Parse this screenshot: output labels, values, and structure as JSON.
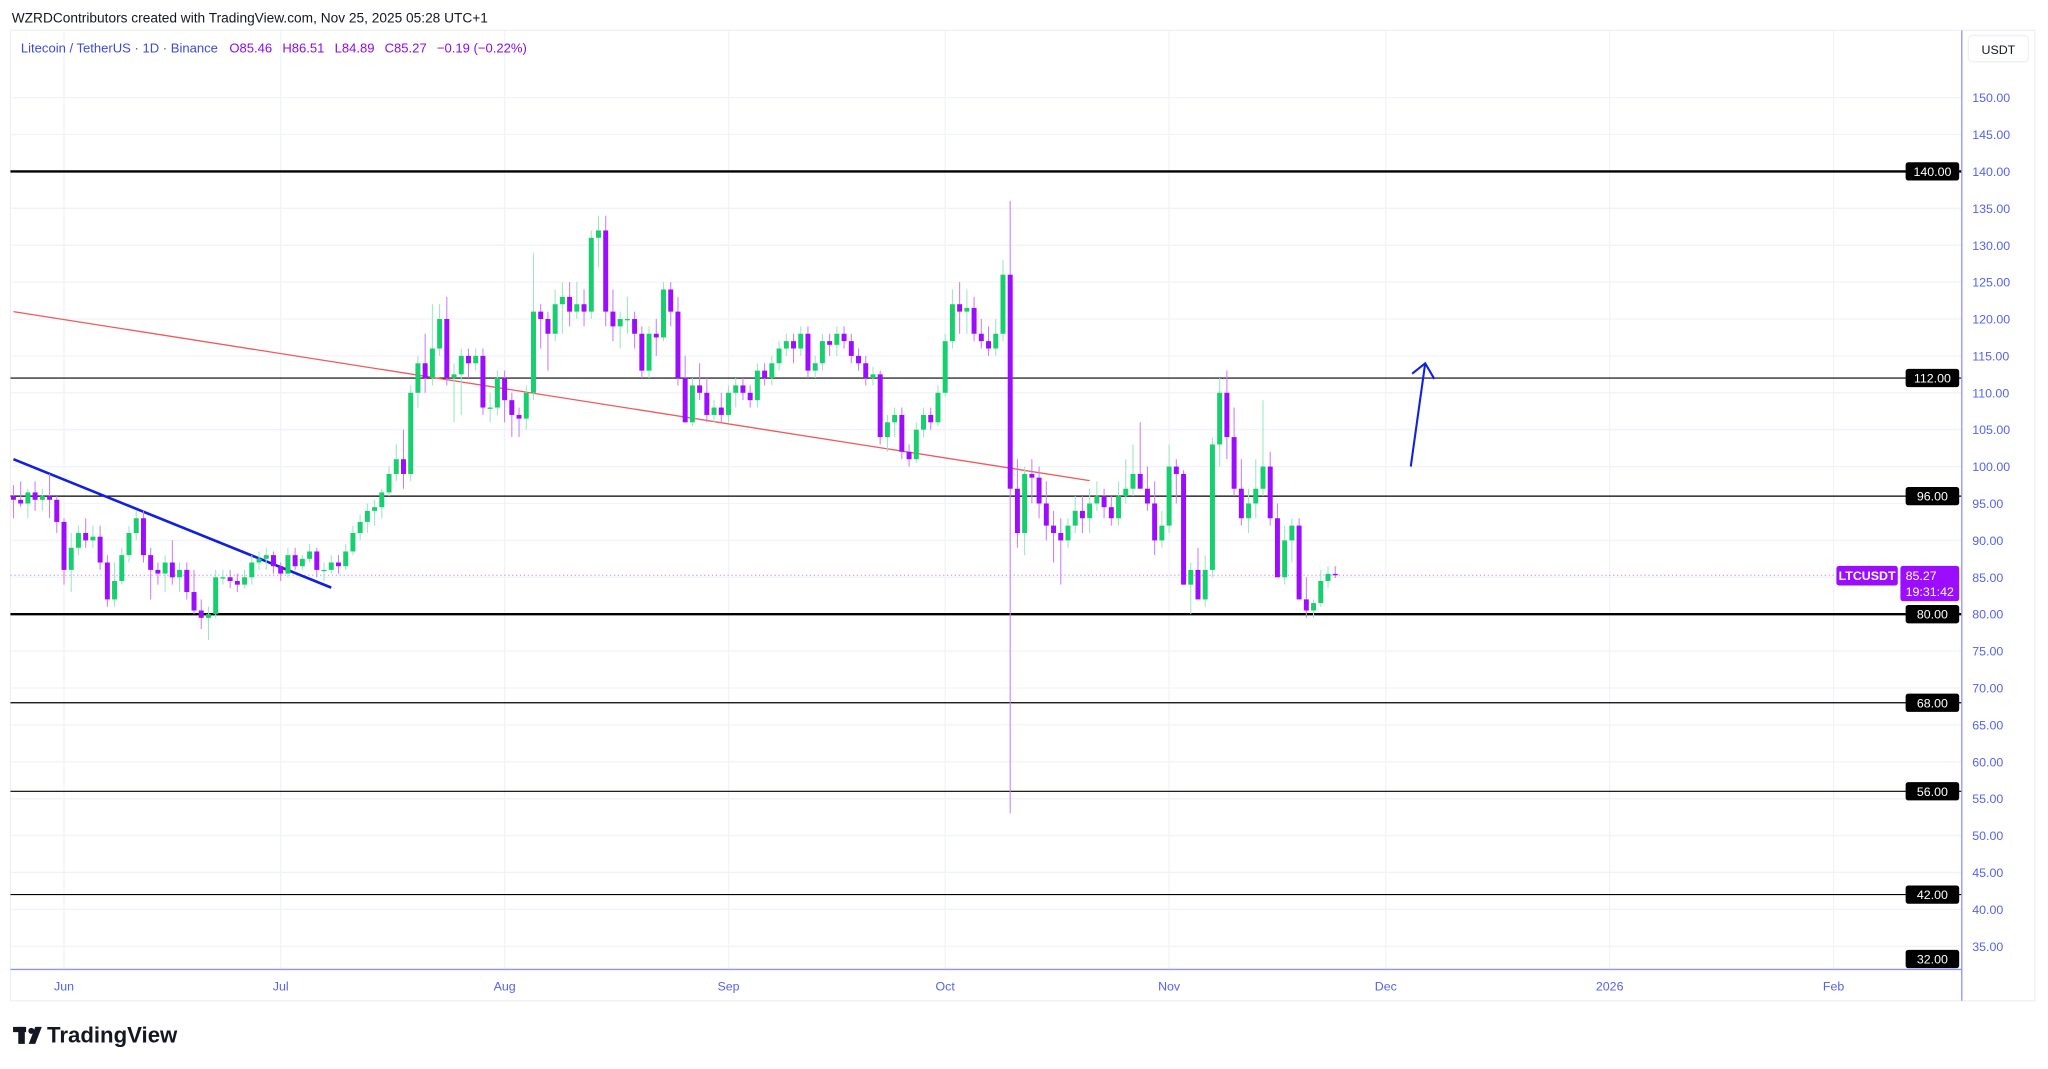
{
  "header": {
    "attribution": "WZRDContributors created with TradingView.com, Nov 25, 2025 05:28 UTC+1"
  },
  "legend": {
    "symbol": "Litecoin / TetherUS · 1D · Binance",
    "open": "O85.46",
    "high": "H86.51",
    "low": "L84.89",
    "close": "C85.27",
    "change": "−0.19 (−0.22%)"
  },
  "price_axis": {
    "currency_button": "USDT"
  },
  "last_price": {
    "symbol_label": "LTCUSDT",
    "price": "85.27",
    "countdown": "19:31:42"
  },
  "logo": {
    "text": "TradingView"
  },
  "colors": {
    "up": "#17cf6e",
    "down": "#9c0cff",
    "axis_text": "#5561f0",
    "level_line": "#000000",
    "trendline_blue": "#1020e0",
    "trendline_red": "#f05a5a",
    "arrow": "#1020e0"
  },
  "chart_data": {
    "type": "candlestick",
    "title": "Litecoin / TetherUS · 1D · Binance",
    "first_date": "2025-05-25",
    "last_date": "2025-11-25",
    "interval": "1D",
    "ylim": [
      31,
      158
    ],
    "y_scale": "linear",
    "grid": true,
    "x_tick_labels": [
      "Jun",
      "Jul",
      "Aug",
      "Sep",
      "Oct",
      "Nov",
      "Dec",
      "2026",
      "Feb"
    ],
    "x_tick_dates": [
      "2025-06-01",
      "2025-07-01",
      "2025-08-01",
      "2025-09-01",
      "2025-10-01",
      "2025-11-01",
      "2025-12-01",
      "2026-01-01",
      "2026-02-01"
    ],
    "y_tick_labels": [
      "35.00",
      "40.00",
      "45.00",
      "50.00",
      "55.00",
      "60.00",
      "65.00",
      "70.00",
      "75.00",
      "80.00",
      "85.00",
      "90.00",
      "95.00",
      "100.00",
      "105.00",
      "110.00",
      "115.00",
      "120.00",
      "125.00",
      "130.00",
      "135.00",
      "140.00",
      "145.00",
      "150.00"
    ],
    "horizontal_levels": [
      {
        "price": 140,
        "label": "140.00",
        "weight": "thick"
      },
      {
        "price": 112,
        "label": "112.00",
        "weight": "thin"
      },
      {
        "price": 96,
        "label": "96.00",
        "weight": "thin"
      },
      {
        "price": 80,
        "label": "80.00",
        "weight": "thick"
      },
      {
        "price": 68,
        "label": "68.00",
        "weight": "thin"
      },
      {
        "price": 56,
        "label": "56.00",
        "weight": "thin"
      },
      {
        "price": 42,
        "label": "42.00",
        "weight": "thin"
      },
      {
        "price": 32,
        "label": "32.00",
        "weight": "none"
      }
    ],
    "trendlines": [
      {
        "color": "blue",
        "from": {
          "date": "2025-05-25",
          "price": 101
        },
        "to": {
          "date": "2025-07-08",
          "price": 83.6
        }
      },
      {
        "color": "red",
        "from": {
          "date": "2025-05-25",
          "price": 121
        },
        "to": {
          "date": "2025-10-21",
          "price": 98.1
        }
      }
    ],
    "arrow": {
      "from": {
        "date": "2025-12-05",
        "price": 100
      },
      "to": {
        "date": "2025-12-07",
        "price": 114
      },
      "direction": "up"
    },
    "candles_ohlc": [
      [
        96,
        97.5,
        93,
        95.5
      ],
      [
        95.5,
        98,
        94.5,
        95
      ],
      [
        95,
        97,
        93,
        96.5
      ],
      [
        96.5,
        98,
        94,
        95.5
      ],
      [
        95.5,
        97,
        94,
        96
      ],
      [
        96,
        99,
        93,
        95.5
      ],
      [
        95.5,
        96,
        91,
        92.5
      ],
      [
        92.5,
        93,
        84,
        86
      ],
      [
        86,
        91,
        83,
        89
      ],
      [
        89,
        92,
        88,
        91
      ],
      [
        91,
        93,
        89,
        90
      ],
      [
        90,
        92,
        89,
        90.5
      ],
      [
        90.5,
        92,
        86,
        87
      ],
      [
        87,
        88,
        81,
        82
      ],
      [
        82,
        87,
        81,
        84.5
      ],
      [
        84.5,
        89,
        84,
        88
      ],
      [
        88,
        92,
        87,
        91
      ],
      [
        91,
        94,
        90,
        93
      ],
      [
        93,
        94,
        87,
        88
      ],
      [
        88,
        89,
        82,
        86
      ],
      [
        86,
        87,
        84,
        85.5
      ],
      [
        85.5,
        88,
        83,
        87
      ],
      [
        87,
        90,
        84,
        85
      ],
      [
        85,
        87,
        83,
        86
      ],
      [
        86,
        87,
        82,
        83
      ],
      [
        83,
        86,
        80,
        80.5
      ],
      [
        80.5,
        82,
        78,
        79.5
      ],
      [
        79.5,
        81,
        76.5,
        80
      ],
      [
        80,
        86,
        79.5,
        85
      ],
      [
        85,
        86,
        84,
        85
      ],
      [
        85,
        86,
        83.5,
        84.5
      ],
      [
        84.5,
        85.5,
        83,
        84
      ],
      [
        84,
        86,
        83.5,
        85
      ],
      [
        85,
        88,
        84,
        87
      ],
      [
        87,
        88.5,
        86,
        87.5
      ],
      [
        87.5,
        89,
        86,
        88
      ],
      [
        88,
        88.5,
        85.5,
        86.5
      ],
      [
        86.5,
        87,
        84.5,
        85.5
      ],
      [
        85.5,
        89,
        85,
        88
      ],
      [
        88,
        89,
        86,
        86.5
      ],
      [
        86.5,
        88,
        86,
        87.5
      ],
      [
        87.5,
        89.5,
        87,
        88.5
      ],
      [
        88.5,
        89,
        85,
        86
      ],
      [
        86,
        87,
        84.5,
        86
      ],
      [
        86,
        88,
        85.5,
        87
      ],
      [
        87,
        88,
        85.5,
        86.5
      ],
      [
        86.5,
        89.5,
        86,
        88.5
      ],
      [
        88.5,
        92,
        88,
        91
      ],
      [
        91,
        93.5,
        90,
        92.5
      ],
      [
        92.5,
        95,
        91,
        94
      ],
      [
        94,
        95.5,
        92,
        94.5
      ],
      [
        94.5,
        97,
        93,
        96.5
      ],
      [
        96.5,
        100,
        96,
        99
      ],
      [
        99,
        103,
        98,
        101
      ],
      [
        101,
        105,
        97,
        99
      ],
      [
        99,
        111,
        98,
        110
      ],
      [
        110,
        115,
        108,
        114
      ],
      [
        114,
        118,
        110,
        112
      ],
      [
        112,
        122,
        111,
        116
      ],
      [
        116,
        122,
        115,
        120
      ],
      [
        120,
        123,
        111,
        112
      ],
      [
        112,
        114,
        106,
        112.5
      ],
      [
        112.5,
        116,
        107,
        115
      ],
      [
        115,
        116,
        112,
        114
      ],
      [
        114,
        116,
        113,
        115
      ],
      [
        115,
        116,
        107,
        108
      ],
      [
        108,
        110,
        106,
        108
      ],
      [
        108,
        113,
        107,
        112
      ],
      [
        112,
        113,
        106,
        109
      ],
      [
        109,
        110,
        104,
        107
      ],
      [
        107,
        108,
        104,
        106.5
      ],
      [
        106.5,
        111,
        105,
        110
      ],
      [
        110,
        129,
        109,
        121
      ],
      [
        121,
        122,
        116,
        120
      ],
      [
        120,
        121,
        113,
        118
      ],
      [
        118,
        124,
        117,
        122
      ],
      [
        122,
        125,
        118,
        123
      ],
      [
        123,
        125,
        119,
        121
      ],
      [
        121,
        125,
        120,
        122
      ],
      [
        122,
        124,
        119,
        121
      ],
      [
        121,
        132,
        120,
        131
      ],
      [
        131,
        134,
        127,
        132
      ],
      [
        132,
        134,
        119,
        121
      ],
      [
        121,
        124,
        117,
        119
      ],
      [
        119,
        121,
        116,
        120
      ],
      [
        120,
        123,
        118,
        120
      ],
      [
        120,
        121,
        116,
        118
      ],
      [
        118,
        119,
        112,
        113
      ],
      [
        113,
        119,
        112,
        118
      ],
      [
        118,
        120,
        115,
        117.5
      ],
      [
        117.5,
        125,
        117,
        124
      ],
      [
        124,
        125,
        119,
        121
      ],
      [
        121,
        123,
        111,
        112
      ],
      [
        112,
        115,
        106,
        106
      ],
      [
        106,
        112,
        105.5,
        111
      ],
      [
        111,
        114,
        109,
        110
      ],
      [
        110,
        112,
        106,
        107
      ],
      [
        107,
        109,
        106,
        108
      ],
      [
        108,
        110,
        106,
        107
      ],
      [
        107,
        111,
        106,
        110
      ],
      [
        110,
        112,
        108,
        111
      ],
      [
        111,
        112,
        109,
        110
      ],
      [
        110,
        111,
        108,
        109
      ],
      [
        109,
        114,
        108,
        113
      ],
      [
        113,
        114,
        111,
        112
      ],
      [
        112,
        115,
        111,
        114
      ],
      [
        114,
        117,
        113,
        116
      ],
      [
        116,
        118,
        115,
        117
      ],
      [
        117,
        118,
        114,
        116
      ],
      [
        116,
        119,
        115,
        118
      ],
      [
        118,
        119,
        112,
        113
      ],
      [
        113,
        115,
        112,
        114
      ],
      [
        114,
        118,
        113,
        117
      ],
      [
        117,
        118,
        115,
        116.5
      ],
      [
        116.5,
        119,
        115,
        118
      ],
      [
        118,
        119,
        116,
        117
      ],
      [
        117,
        118,
        114,
        115
      ],
      [
        115,
        116,
        113,
        114
      ],
      [
        114,
        115,
        111,
        112
      ],
      [
        112,
        113.5,
        111,
        112.5
      ],
      [
        112.5,
        113,
        103,
        104
      ],
      [
        104,
        107,
        102,
        106
      ],
      [
        106,
        108,
        104,
        107
      ],
      [
        107,
        108,
        101,
        102
      ],
      [
        102,
        103,
        100,
        101
      ],
      [
        101,
        106,
        100.5,
        105
      ],
      [
        105,
        108,
        104,
        107
      ],
      [
        107,
        108,
        105,
        106
      ],
      [
        106,
        111,
        105.5,
        110
      ],
      [
        110,
        118,
        109.5,
        117
      ],
      [
        117,
        124,
        116,
        122
      ],
      [
        122,
        125,
        118,
        121
      ],
      [
        121,
        124,
        118,
        121.5
      ],
      [
        121.5,
        123,
        117,
        118
      ],
      [
        118,
        120,
        116,
        117
      ],
      [
        117,
        119,
        115,
        116
      ],
      [
        116,
        120,
        115,
        118
      ],
      [
        118,
        128,
        117,
        126
      ],
      [
        126,
        136,
        53,
        97
      ],
      [
        97,
        101,
        89,
        91
      ],
      [
        91,
        100,
        88,
        99
      ],
      [
        99,
        101,
        95,
        98.5
      ],
      [
        98.5,
        100,
        93,
        95
      ],
      [
        95,
        98,
        90,
        92
      ],
      [
        92,
        94,
        87,
        91
      ],
      [
        91,
        93,
        84,
        90
      ],
      [
        90,
        93,
        89,
        92
      ],
      [
        92,
        96,
        91,
        94
      ],
      [
        94,
        96,
        91,
        93
      ],
      [
        93,
        97,
        91,
        95
      ],
      [
        95,
        98,
        94,
        96
      ],
      [
        96,
        97,
        93,
        94.5
      ],
      [
        94.5,
        96,
        92,
        93
      ],
      [
        93,
        98,
        92,
        96
      ],
      [
        96,
        101,
        95,
        97
      ],
      [
        97,
        103,
        96,
        99
      ],
      [
        99,
        106,
        98,
        97
      ],
      [
        97,
        100,
        94,
        95
      ],
      [
        95,
        98,
        88,
        90
      ],
      [
        90,
        94,
        89,
        92
      ],
      [
        92,
        103,
        91,
        100
      ],
      [
        100,
        101,
        95,
        99
      ],
      [
        99,
        99.5,
        84,
        84
      ],
      [
        84,
        87,
        80,
        86
      ],
      [
        86,
        89,
        83,
        82
      ],
      [
        82,
        88,
        81,
        86
      ],
      [
        86,
        104,
        85,
        103
      ],
      [
        103,
        112,
        100,
        110
      ],
      [
        110,
        113,
        101,
        104
      ],
      [
        104,
        108,
        96,
        97
      ],
      [
        97,
        101,
        92,
        93
      ],
      [
        93,
        97,
        91,
        95
      ],
      [
        95,
        101,
        93,
        97
      ],
      [
        97,
        109,
        96,
        100
      ],
      [
        100,
        102,
        92,
        93
      ],
      [
        93,
        95,
        88,
        85
      ],
      [
        85,
        92,
        84,
        90
      ],
      [
        90,
        93,
        87,
        92
      ],
      [
        92,
        93,
        84,
        82
      ],
      [
        82,
        85,
        79.5,
        80.5
      ],
      [
        80.5,
        82,
        79.5,
        81.5
      ],
      [
        81.5,
        86,
        81,
        84.5
      ],
      [
        84.5,
        86.5,
        83.5,
        85.46
      ],
      [
        85.46,
        86.51,
        84.89,
        85.27
      ]
    ]
  }
}
